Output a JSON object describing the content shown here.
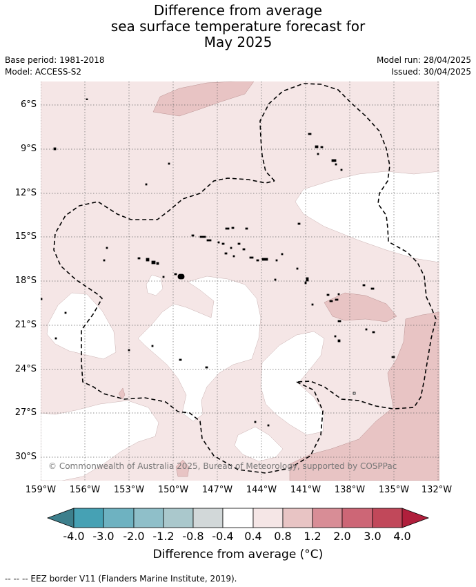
{
  "title": {
    "line1": "Difference from average",
    "line2": "sea surface temperature forecast for",
    "line3": "May 2025"
  },
  "meta": {
    "base_period": "Base period: 1981-2018",
    "model": "Model: ACCESS-S2",
    "model_run": "Model run: 28/04/2025",
    "issued": "Issued: 30/04/2025"
  },
  "map": {
    "lat_labels": [
      "6°S",
      "9°S",
      "12°S",
      "15°S",
      "18°S",
      "21°S",
      "24°S",
      "27°S",
      "30°S"
    ],
    "lon_labels": [
      "159°W",
      "156°W",
      "153°W",
      "150°W",
      "147°W",
      "144°W",
      "141°W",
      "138°W",
      "135°W",
      "132°W"
    ],
    "copyright": "© Commonwealth of Australia 2025, Bureau of Meteorology, supported by COSPPac",
    "colors": {
      "white": "#ffffff",
      "anom_0_4_to_0_8": "#f5e6e6",
      "anom_0_8_to_1_2": "#e8c4c4",
      "eez_line": "#000000",
      "grid": "#666666"
    }
  },
  "colorbar": {
    "tick_labels": [
      "-4.0",
      "-3.0",
      "-2.0",
      "-1.2",
      "-0.8",
      "-0.4",
      "0.4",
      "0.8",
      "1.2",
      "2.0",
      "3.0",
      "4.0"
    ],
    "colors": [
      "#3d7f8c",
      "#46a1b4",
      "#6eb2c1",
      "#8fbfc9",
      "#aac8cc",
      "#d2d8d9",
      "#ffffff",
      "#f5e6e6",
      "#e8c4c4",
      "#d88d96",
      "#cd6676",
      "#c1485a",
      "#b01f3c"
    ],
    "title": "Difference from average (°C)"
  },
  "footer": {
    "eez_legend": "--  --  -- EEZ border V11 (Flanders Marine Institute, 2019)."
  }
}
